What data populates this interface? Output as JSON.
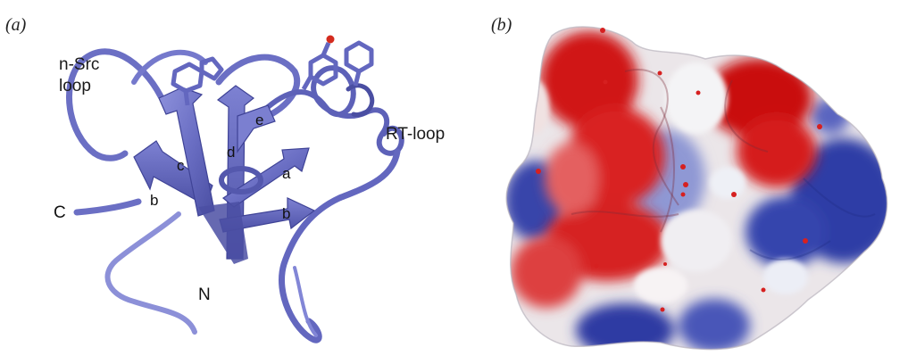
{
  "panel_a": {
    "letter": "(a)",
    "labels": {
      "nsrc_line1": "n-Src",
      "nsrc_line2": "loop",
      "rt_loop": "RT-loop",
      "c_terminus": "C",
      "n_terminus": "N"
    },
    "strands": {
      "a": "a",
      "b1": "b",
      "b2": "b",
      "c": "c",
      "d": "d",
      "e": "e"
    },
    "colors": {
      "ribbon": "#6b6fc4",
      "ribbon_dark": "#4e52a8",
      "ribbon_light": "#9a9de0",
      "oxygen": "#d42b1e"
    }
  },
  "panel_b": {
    "letter": "(b)",
    "colors": {
      "positive": "#2d3ea8",
      "negative": "#d11a1a",
      "neutral": "#f2f2f2",
      "water": "#d62020"
    }
  }
}
